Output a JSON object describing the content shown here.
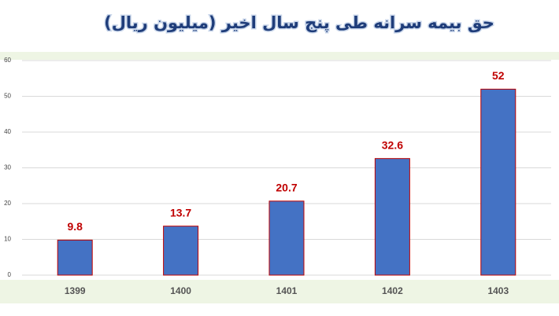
{
  "chart_data": {
    "type": "bar",
    "title": "حق بیمه سرانه طی پنج سال اخیر (میلیون ریال)",
    "categories": [
      "1399",
      "1400",
      "1401",
      "1402",
      "1403"
    ],
    "values": [
      9.8,
      13.7,
      20.7,
      32.6,
      52
    ],
    "color": "#4472c4",
    "edge_color": "#c00000",
    "label_color": "#c00000",
    "ylim": [
      0,
      60
    ],
    "yticks": [
      0,
      10,
      20,
      30,
      40,
      50,
      60
    ],
    "grid": true
  }
}
